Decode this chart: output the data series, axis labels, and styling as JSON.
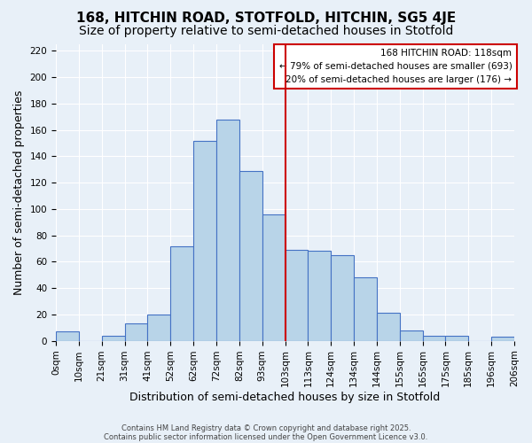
{
  "title": "168, HITCHIN ROAD, STOTFOLD, HITCHIN, SG5 4JE",
  "subtitle": "Size of property relative to semi-detached houses in Stotfold",
  "xlabel": "Distribution of semi-detached houses by size in Stotfold",
  "ylabel": "Number of semi-detached properties",
  "bin_labels": [
    "0sqm",
    "10sqm",
    "21sqm",
    "31sqm",
    "41sqm",
    "52sqm",
    "62sqm",
    "72sqm",
    "82sqm",
    "93sqm",
    "103sqm",
    "113sqm",
    "124sqm",
    "134sqm",
    "144sqm",
    "155sqm",
    "165sqm",
    "175sqm",
    "185sqm",
    "196sqm",
    "206sqm"
  ],
  "bar_heights": [
    7,
    0,
    4,
    13,
    20,
    72,
    152,
    168,
    129,
    96,
    69,
    68,
    65,
    48,
    21,
    8,
    4,
    4,
    0,
    3
  ],
  "bar_color": "#b8d4e8",
  "bar_edge_color": "#4472c4",
  "vline_x": 10,
  "vline_color": "#cc0000",
  "ylim": [
    0,
    225
  ],
  "yticks": [
    0,
    20,
    40,
    60,
    80,
    100,
    120,
    140,
    160,
    180,
    200,
    220
  ],
  "legend_title": "168 HITCHIN ROAD: 118sqm",
  "legend_line1": "← 79% of semi-detached houses are smaller (693)",
  "legend_line2": "20% of semi-detached houses are larger (176) →",
  "footnote1": "Contains HM Land Registry data © Crown copyright and database right 2025.",
  "footnote2": "Contains public sector information licensed under the Open Government Licence v3.0.",
  "bg_color": "#e8f0f8",
  "plot_bg_color": "#e8f0f8",
  "grid_color": "#ffffff",
  "title_fontsize": 11,
  "subtitle_fontsize": 10,
  "axis_label_fontsize": 9,
  "tick_fontsize": 7.5
}
